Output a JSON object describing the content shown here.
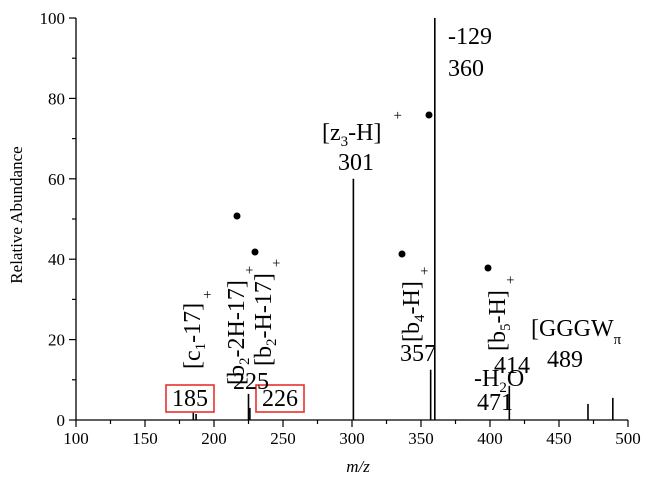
{
  "chart_data": {
    "type": "bar",
    "xlabel": "m/z",
    "ylabel": "Relative Abundance",
    "xlim": [
      100,
      500
    ],
    "ylim": [
      0,
      100
    ],
    "x_ticks": [
      "100",
      "150",
      "200",
      "250",
      "300",
      "350",
      "400",
      "450",
      "500"
    ],
    "y_ticks": [
      "0",
      "20",
      "40",
      "60",
      "80",
      "100"
    ],
    "grid": false,
    "peaks": [
      {
        "x": 185,
        "y": 2
      },
      {
        "x": 187,
        "y": 1.5
      },
      {
        "x": 225,
        "y": 6.5
      },
      {
        "x": 226,
        "y": 3
      },
      {
        "x": 301,
        "y": 60
      },
      {
        "x": 357,
        "y": 12.5
      },
      {
        "x": 360,
        "y": 100
      },
      {
        "x": 414,
        "y": 8.5
      },
      {
        "x": 471,
        "y": 4
      },
      {
        "x": 489,
        "y": 5.5
      }
    ],
    "peak_labels": [
      {
        "text": "185",
        "x": 185,
        "boxed": true
      },
      {
        "text": "226",
        "x": 226,
        "boxed": true
      },
      {
        "text": "225",
        "x": 225
      },
      {
        "text": "301",
        "x": 301
      },
      {
        "text": "357",
        "x": 357
      },
      {
        "text": "360",
        "x": 360
      },
      {
        "text": "-129",
        "x": 360
      },
      {
        "text": "414",
        "x": 414
      },
      {
        "text": "471",
        "x": 471
      },
      {
        "text": "489",
        "x": 489
      }
    ],
    "ion_labels": [
      {
        "id": "c1-17",
        "parts": [
          "[c",
          "1",
          "-17]",
          "+"
        ]
      },
      {
        "id": "b2-2H-17",
        "parts": [
          "[b",
          "2",
          "-2H-17]",
          "+"
        ]
      },
      {
        "id": "b2-H-17",
        "parts": [
          "[b",
          "2",
          "-H-17]",
          "+"
        ]
      },
      {
        "id": "z3-H",
        "parts": [
          "[z",
          "3",
          "-H]",
          "+"
        ]
      },
      {
        "id": "b4-H",
        "parts": [
          "[b",
          "4",
          "-H]",
          "+"
        ]
      },
      {
        "id": "b5-H",
        "parts": [
          "[b",
          "5",
          "-H]",
          "+"
        ]
      },
      {
        "id": "GGGW",
        "parts": [
          "[GGGW",
          "π"
        ]
      },
      {
        "id": "H2O",
        "parts": [
          "-H",
          "2",
          "O"
        ]
      }
    ],
    "highlight_color": "#e8322d"
  }
}
